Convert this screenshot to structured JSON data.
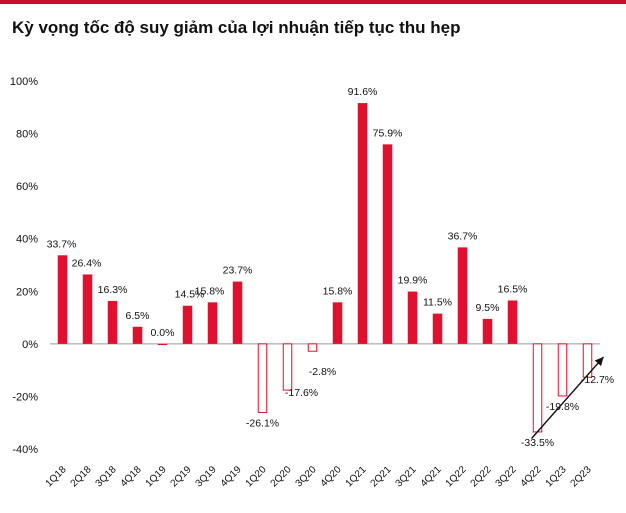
{
  "chart_data": {
    "type": "bar",
    "title": "Kỳ vọng tốc độ suy giảm của lợi nhuận tiếp tục thu hẹp",
    "xlabel": "",
    "ylabel": "",
    "ylim": [
      -40,
      100
    ],
    "yticks": [
      -40,
      -20,
      0,
      20,
      40,
      60,
      80,
      100
    ],
    "ytick_labels": [
      "-40%",
      "-20%",
      "0%",
      "20%",
      "40%",
      "60%",
      "80%",
      "100%"
    ],
    "categories": [
      "1Q18",
      "2Q18",
      "3Q18",
      "4Q18",
      "1Q19",
      "2Q19",
      "3Q19",
      "4Q19",
      "1Q20",
      "2Q20",
      "3Q20",
      "4Q20",
      "1Q21",
      "2Q21",
      "3Q21",
      "4Q21",
      "1Q22",
      "2Q22",
      "3Q22",
      "4Q22",
      "1Q23",
      "2Q23"
    ],
    "values": [
      33.7,
      26.4,
      16.3,
      6.5,
      0.0,
      14.5,
      15.8,
      23.7,
      -26.1,
      -17.6,
      -2.8,
      15.8,
      91.6,
      75.9,
      19.9,
      11.5,
      36.7,
      9.5,
      16.5,
      -33.5,
      -19.8,
      -12.7
    ],
    "labels": [
      "33.7%",
      "26.4%",
      "16.3%",
      "6.5%",
      "0.0%",
      "14.5%",
      "15.8%",
      "23.7%",
      "-26.1%",
      "-17.6%",
      "-2.8%",
      "15.8%",
      "91.6%",
      "75.9%",
      "19.9%",
      "11.5%",
      "36.7%",
      "9.5%",
      "16.5%",
      "-33.5%",
      "-19.8%",
      "-12.7%"
    ],
    "colors": {
      "positive": "#e0102f",
      "negative_outline": "#e0102f",
      "axis": "#999999",
      "text": "#111111",
      "accent": "#c8102e",
      "arrow": "#111111"
    },
    "annotation": {
      "type": "arrow",
      "from_category": "4Q22",
      "to_category": "2Q23",
      "meaning": "trend-upward"
    }
  }
}
